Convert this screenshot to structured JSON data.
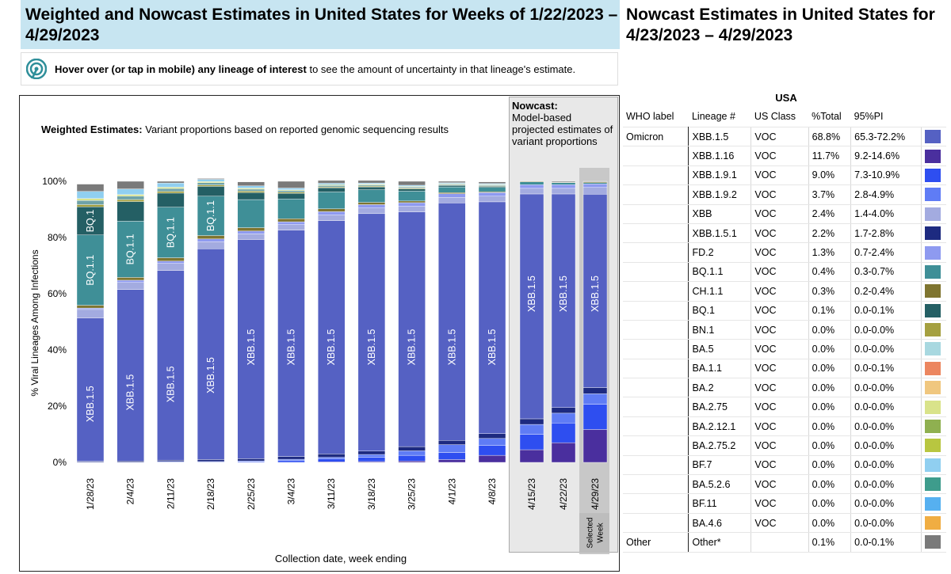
{
  "header": {
    "left_title": "Weighted and Nowcast Estimates in United States for Weeks of 1/22/2023 – 4/29/2023",
    "right_title": "Nowcast Estimates in United States for 4/23/2023 – 4/29/2023"
  },
  "hover_note": {
    "bold": "Hover over (or tap in mobile) any lineage of interest",
    "rest": " to see the amount of uncertainty in that lineage's estimate."
  },
  "weighted_caption": {
    "bold": "Weighted Estimates:",
    "rest": " Variant proportions based on reported genomic sequencing results"
  },
  "nowcast_caption": {
    "bold": "Nowcast:",
    "rest": "Model-based projected estimates of variant proportions"
  },
  "selected_week_label": "Selected Week",
  "colors": {
    "XBB.1.5": "#5561c3",
    "XBB.1.16": "#4a2f9e",
    "XBB.1.9.1": "#2e4ef0",
    "XBB.1.9.2": "#5f7cf5",
    "XBB": "#a3abe0",
    "XBB.1.5.1": "#1d2a80",
    "FD.2": "#8e9af0",
    "BQ.1.1": "#3f8f97",
    "CH.1.1": "#7f7530",
    "BQ.1": "#245f64",
    "BN.1": "#a5a040",
    "BA.5": "#6fa2a7",
    "BA.1.1": "#ec865f",
    "BA.2": "#f0c77f",
    "BA.2.75": "#d9e38a",
    "BA.2.12.1": "#8fb050",
    "BA.2.75.2": "#b8c640",
    "BF.7": "#90cff0",
    "BA.5.2.6": "#3e9c8c",
    "BF.11": "#56b0f0",
    "BA.4.6": "#f0ad42",
    "Other": "#7a7a7a",
    "Light": "#a8d8e0"
  },
  "chart_data": {
    "type": "bar",
    "stacked": true,
    "title": "Weighted Estimates: Variant proportions based on reported genomic sequencing results",
    "xlabel": "Collection date, week ending",
    "ylabel": "% Viral Lineages Among Infections",
    "ylim": [
      0,
      100
    ],
    "yticks": [
      "0%",
      "20%",
      "40%",
      "60%",
      "80%",
      "100%"
    ],
    "weighted_categories": [
      "1/28/23",
      "2/4/23",
      "2/11/23",
      "2/18/23",
      "2/25/23",
      "3/4/23",
      "3/11/23",
      "3/18/23",
      "3/25/23",
      "4/1/23",
      "4/8/23"
    ],
    "nowcast_categories": [
      "4/15/23",
      "4/22/23",
      "4/29/23"
    ],
    "weighted_series": [
      {
        "name": "XBB.1.16",
        "values": [
          0,
          0,
          0,
          0,
          0,
          0,
          0.2,
          0.3,
          0.5,
          1.0,
          2.5
        ]
      },
      {
        "name": "XBB.1.9.1",
        "values": [
          0.1,
          0.1,
          0.2,
          0.2,
          0.3,
          0.6,
          1.0,
          1.5,
          2.0,
          2.5,
          3.5
        ]
      },
      {
        "name": "XBB.1.9.2",
        "values": [
          0,
          0,
          0.1,
          0.1,
          0.2,
          0.5,
          0.6,
          1.0,
          1.6,
          2.8,
          2.5
        ]
      },
      {
        "name": "XBB.1.5.1",
        "values": [
          0.3,
          0.4,
          0.5,
          0.7,
          0.8,
          1.0,
          1.2,
          1.2,
          1.5,
          1.5,
          1.7
        ]
      },
      {
        "name": "XBB.1.5",
        "values": [
          51,
          61,
          67.5,
          75,
          78,
          80.5,
          83,
          84.5,
          83.5,
          84.5,
          82.5
        ]
      },
      {
        "name": "XBB",
        "values": [
          3,
          2.5,
          2.5,
          2.5,
          2,
          2,
          2,
          2,
          2,
          2,
          2
        ]
      },
      {
        "name": "FD.2",
        "values": [
          0.5,
          0.8,
          0.8,
          1,
          1,
          1,
          1.2,
          1.2,
          1.3,
          1.3,
          1.3
        ]
      },
      {
        "name": "CH.1.1",
        "values": [
          1,
          1,
          1.2,
          1.2,
          1.2,
          1.1,
          1,
          0.8,
          0.6,
          0.4,
          0.3
        ]
      },
      {
        "name": "BQ.1.1",
        "values": [
          25,
          20,
          18,
          14,
          10,
          7,
          6,
          4.5,
          3.5,
          2,
          1.5
        ]
      },
      {
        "name": "BQ.1",
        "values": [
          10,
          7,
          5,
          3.5,
          2.5,
          2,
          1.5,
          1,
          0.8,
          0.5,
          0.4
        ]
      },
      {
        "name": "BN.1",
        "values": [
          0.8,
          0.7,
          0.6,
          0.5,
          0.5,
          0.4,
          0.3,
          0.3,
          0.3,
          0.2,
          0.2
        ]
      },
      {
        "name": "BA.5",
        "values": [
          1.5,
          1.2,
          1,
          0.8,
          0.7,
          0.6,
          0.5,
          0.4,
          0.4,
          0.3,
          0.3
        ]
      },
      {
        "name": "BA.2.75",
        "values": [
          0.7,
          0.6,
          0.5,
          0.4,
          0.4,
          0.3,
          0.3,
          0.3,
          0.2,
          0.2,
          0.2
        ]
      },
      {
        "name": "BF.7",
        "values": [
          2.5,
          2,
          1.5,
          0.8,
          0.8,
          0.6,
          0.5,
          0.4,
          0.4,
          0.3,
          0.3
        ]
      },
      {
        "name": "Other",
        "values": [
          2.6,
          2.7,
          0.6,
          0.3,
          1.4,
          2.4,
          1.0,
          0.9,
          1.4,
          0.5,
          0.6
        ]
      }
    ],
    "nowcast_series": [
      {
        "name": "XBB.1.16",
        "values": [
          4.5,
          7,
          11.7
        ]
      },
      {
        "name": "XBB.1.9.1",
        "values": [
          5.5,
          7,
          9.0
        ]
      },
      {
        "name": "XBB.1.9.2",
        "values": [
          3.5,
          3.5,
          3.7
        ]
      },
      {
        "name": "XBB.1.5.1",
        "values": [
          2,
          2,
          2.2
        ]
      },
      {
        "name": "XBB.1.5",
        "values": [
          80,
          76,
          68.8
        ]
      },
      {
        "name": "XBB",
        "values": [
          2,
          2,
          2.4
        ]
      },
      {
        "name": "FD.2",
        "values": [
          1.3,
          1.3,
          1.3
        ]
      },
      {
        "name": "BQ.1.1",
        "values": [
          1,
          0.7,
          0.4
        ]
      },
      {
        "name": "CH.1.1",
        "values": [
          0.2,
          0.2,
          0.3
        ]
      },
      {
        "name": "Other",
        "values": [
          0,
          0.3,
          0.2
        ]
      }
    ],
    "bar_labels": [
      {
        "bar": "1/28/23",
        "series": "XBB.1.5",
        "text": "XBB.1.5"
      },
      {
        "bar": "1/28/23",
        "series": "BQ.1.1",
        "text": "BQ.1.1"
      },
      {
        "bar": "1/28/23",
        "series": "BQ.1",
        "text": "BQ.1"
      },
      {
        "bar": "2/4/23",
        "series": "XBB.1.5",
        "text": "XBB.1.5"
      },
      {
        "bar": "2/4/23",
        "series": "BQ.1.1",
        "text": "BQ.1.1"
      },
      {
        "bar": "2/11/23",
        "series": "XBB.1.5",
        "text": "XBB.1.5"
      },
      {
        "bar": "2/11/23",
        "series": "BQ.1.1",
        "text": "BQ.1.1"
      },
      {
        "bar": "2/18/23",
        "series": "XBB.1.5",
        "text": "XBB.1.5"
      },
      {
        "bar": "2/18/23",
        "series": "BQ.1.1",
        "text": "BQ.1.1"
      },
      {
        "bar": "2/25/23",
        "series": "XBB.1.5",
        "text": "XBB.1.5"
      },
      {
        "bar": "3/4/23",
        "series": "XBB.1.5",
        "text": "XBB.1.5"
      },
      {
        "bar": "3/11/23",
        "series": "XBB.1.5",
        "text": "XBB.1.5"
      },
      {
        "bar": "3/18/23",
        "series": "XBB.1.5",
        "text": "XBB.1.5"
      },
      {
        "bar": "3/25/23",
        "series": "XBB.1.5",
        "text": "XBB.1.5"
      },
      {
        "bar": "4/1/23",
        "series": "XBB.1.5",
        "text": "XBB.1.5"
      },
      {
        "bar": "4/8/23",
        "series": "XBB.1.5",
        "text": "XBB.1.5"
      },
      {
        "bar": "4/15/23",
        "series": "XBB.1.5",
        "text": "XBB.1.5"
      },
      {
        "bar": "4/22/23",
        "series": "XBB.1.5",
        "text": "XBB.1.5"
      },
      {
        "bar": "4/29/23",
        "series": "XBB.1.5",
        "text": "XBB.1.5"
      }
    ]
  },
  "nowcast_table": {
    "country": "USA",
    "headers": [
      "WHO label",
      "Lineage #",
      "US Class",
      "%Total",
      "95%PI"
    ],
    "rows": [
      {
        "who": "Omicron",
        "lineage": "XBB.1.5",
        "cls": "VOC",
        "pct": "68.8%",
        "pi": "65.3-72.2%",
        "color": "#5561c3"
      },
      {
        "who": "",
        "lineage": "XBB.1.16",
        "cls": "VOC",
        "pct": "11.7%",
        "pi": "9.2-14.6%",
        "color": "#4a2f9e"
      },
      {
        "who": "",
        "lineage": "XBB.1.9.1",
        "cls": "VOC",
        "pct": "9.0%",
        "pi": "7.3-10.9%",
        "color": "#2e4ef0"
      },
      {
        "who": "",
        "lineage": "XBB.1.9.2",
        "cls": "VOC",
        "pct": "3.7%",
        "pi": "2.8-4.9%",
        "color": "#5f7cf5"
      },
      {
        "who": "",
        "lineage": "XBB",
        "cls": "VOC",
        "pct": "2.4%",
        "pi": "1.4-4.0%",
        "color": "#a3abe0"
      },
      {
        "who": "",
        "lineage": "XBB.1.5.1",
        "cls": "VOC",
        "pct": "2.2%",
        "pi": "1.7-2.8%",
        "color": "#1d2a80"
      },
      {
        "who": "",
        "lineage": "FD.2",
        "cls": "VOC",
        "pct": "1.3%",
        "pi": "0.7-2.4%",
        "color": "#8e9af0"
      },
      {
        "who": "",
        "lineage": "BQ.1.1",
        "cls": "VOC",
        "pct": "0.4%",
        "pi": "0.3-0.7%",
        "color": "#3f8f97"
      },
      {
        "who": "",
        "lineage": "CH.1.1",
        "cls": "VOC",
        "pct": "0.3%",
        "pi": "0.2-0.4%",
        "color": "#7f7530"
      },
      {
        "who": "",
        "lineage": "BQ.1",
        "cls": "VOC",
        "pct": "0.1%",
        "pi": "0.0-0.1%",
        "color": "#245f64"
      },
      {
        "who": "",
        "lineage": "BN.1",
        "cls": "VOC",
        "pct": "0.0%",
        "pi": "0.0-0.0%",
        "color": "#a5a040"
      },
      {
        "who": "",
        "lineage": "BA.5",
        "cls": "VOC",
        "pct": "0.0%",
        "pi": "0.0-0.0%",
        "color": "#a8d8e0"
      },
      {
        "who": "",
        "lineage": "BA.1.1",
        "cls": "VOC",
        "pct": "0.0%",
        "pi": "0.0-0.1%",
        "color": "#ec865f"
      },
      {
        "who": "",
        "lineage": "BA.2",
        "cls": "VOC",
        "pct": "0.0%",
        "pi": "0.0-0.0%",
        "color": "#f0c77f"
      },
      {
        "who": "",
        "lineage": "BA.2.75",
        "cls": "VOC",
        "pct": "0.0%",
        "pi": "0.0-0.0%",
        "color": "#d9e38a"
      },
      {
        "who": "",
        "lineage": "BA.2.12.1",
        "cls": "VOC",
        "pct": "0.0%",
        "pi": "0.0-0.0%",
        "color": "#8fb050"
      },
      {
        "who": "",
        "lineage": "BA.2.75.2",
        "cls": "VOC",
        "pct": "0.0%",
        "pi": "0.0-0.0%",
        "color": "#b8c640"
      },
      {
        "who": "",
        "lineage": "BF.7",
        "cls": "VOC",
        "pct": "0.0%",
        "pi": "0.0-0.0%",
        "color": "#90cff0"
      },
      {
        "who": "",
        "lineage": "BA.5.2.6",
        "cls": "VOC",
        "pct": "0.0%",
        "pi": "0.0-0.0%",
        "color": "#3e9c8c"
      },
      {
        "who": "",
        "lineage": "BF.11",
        "cls": "VOC",
        "pct": "0.0%",
        "pi": "0.0-0.0%",
        "color": "#56b0f0"
      },
      {
        "who": "",
        "lineage": "BA.4.6",
        "cls": "VOC",
        "pct": "0.0%",
        "pi": "0.0-0.0%",
        "color": "#f0ad42"
      }
    ],
    "other_row": {
      "who": "Other",
      "lineage": "Other*",
      "cls": "",
      "pct": "0.1%",
      "pi": "0.0-0.1%",
      "color": "#7a7a7a"
    }
  }
}
